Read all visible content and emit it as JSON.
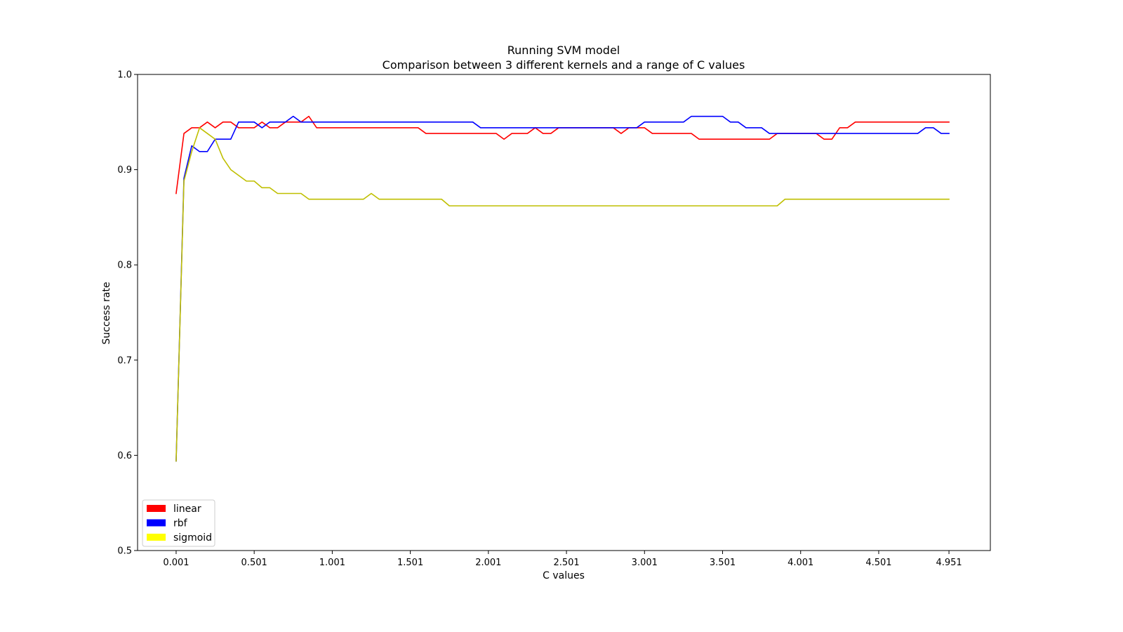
{
  "chart_data": {
    "type": "line",
    "title": [
      "Running SVM model",
      "Comparison between 3 different kernels and a range of C values"
    ],
    "xlabel": "C values",
    "ylabel": "Success rate",
    "xlim": [
      -0.246,
      5.216
    ],
    "ylim": [
      0.5,
      1.0
    ],
    "xticks": [
      0.001,
      0.501,
      1.001,
      1.501,
      2.001,
      2.501,
      3.001,
      3.501,
      4.001,
      4.501,
      4.951
    ],
    "xtick_labels": [
      "0.001",
      "0.501",
      "1.001",
      "1.501",
      "2.001",
      "2.501",
      "3.001",
      "3.501",
      "4.001",
      "4.501",
      "4.951"
    ],
    "yticks": [
      0.5,
      0.6,
      0.7,
      0.8,
      0.9,
      1.0
    ],
    "ytick_labels": [
      "0.5",
      "0.6",
      "0.7",
      "0.8",
      "0.9",
      "1.0"
    ],
    "grid": false,
    "legend": {
      "placement": "lower-left",
      "entries": [
        {
          "label": "linear",
          "color": "#ff0000"
        },
        {
          "label": "rbf",
          "color": "#0000ff"
        },
        {
          "label": "sigmoid",
          "color": "#ffff00"
        }
      ]
    },
    "series": [
      {
        "name": "linear",
        "color": "#ff0000",
        "points": [
          [
            0.001,
            0.875
          ],
          [
            0.051,
            0.938
          ],
          [
            0.101,
            0.944
          ],
          [
            0.151,
            0.944
          ],
          [
            0.201,
            0.95
          ],
          [
            0.251,
            0.944
          ],
          [
            0.301,
            0.95
          ],
          [
            0.351,
            0.95
          ],
          [
            0.401,
            0.944
          ],
          [
            0.451,
            0.944
          ],
          [
            0.501,
            0.944
          ],
          [
            0.551,
            0.95
          ],
          [
            0.601,
            0.944
          ],
          [
            0.651,
            0.944
          ],
          [
            0.701,
            0.95
          ],
          [
            0.751,
            0.95
          ],
          [
            0.801,
            0.95
          ],
          [
            0.851,
            0.956
          ],
          [
            0.901,
            0.944
          ],
          [
            1.001,
            0.944
          ],
          [
            1.201,
            0.944
          ],
          [
            1.401,
            0.944
          ],
          [
            1.551,
            0.944
          ],
          [
            1.601,
            0.938
          ],
          [
            1.801,
            0.938
          ],
          [
            2.051,
            0.938
          ],
          [
            2.101,
            0.932
          ],
          [
            2.151,
            0.938
          ],
          [
            2.251,
            0.938
          ],
          [
            2.301,
            0.944
          ],
          [
            2.351,
            0.938
          ],
          [
            2.401,
            0.938
          ],
          [
            2.451,
            0.944
          ],
          [
            2.551,
            0.944
          ],
          [
            2.801,
            0.944
          ],
          [
            2.851,
            0.938
          ],
          [
            2.901,
            0.944
          ],
          [
            3.001,
            0.944
          ],
          [
            3.051,
            0.938
          ],
          [
            3.301,
            0.938
          ],
          [
            3.351,
            0.932
          ],
          [
            3.501,
            0.932
          ],
          [
            3.601,
            0.932
          ],
          [
            3.801,
            0.932
          ],
          [
            3.851,
            0.938
          ],
          [
            4.101,
            0.938
          ],
          [
            4.151,
            0.932
          ],
          [
            4.201,
            0.932
          ],
          [
            4.251,
            0.944
          ],
          [
            4.301,
            0.944
          ],
          [
            4.351,
            0.95
          ],
          [
            4.501,
            0.95
          ],
          [
            4.951,
            0.95
          ]
        ]
      },
      {
        "name": "rbf",
        "color": "#0000ff",
        "points": [
          [
            0.001,
            0.594
          ],
          [
            0.051,
            0.891
          ],
          [
            0.101,
            0.925
          ],
          [
            0.151,
            0.919
          ],
          [
            0.201,
            0.919
          ],
          [
            0.251,
            0.932
          ],
          [
            0.301,
            0.932
          ],
          [
            0.351,
            0.932
          ],
          [
            0.401,
            0.95
          ],
          [
            0.451,
            0.95
          ],
          [
            0.501,
            0.95
          ],
          [
            0.551,
            0.944
          ],
          [
            0.601,
            0.95
          ],
          [
            0.651,
            0.95
          ],
          [
            0.701,
            0.95
          ],
          [
            0.751,
            0.956
          ],
          [
            0.801,
            0.95
          ],
          [
            0.851,
            0.95
          ],
          [
            1.001,
            0.95
          ],
          [
            1.501,
            0.95
          ],
          [
            1.901,
            0.95
          ],
          [
            1.951,
            0.944
          ],
          [
            2.001,
            0.944
          ],
          [
            2.501,
            0.944
          ],
          [
            2.951,
            0.944
          ],
          [
            3.001,
            0.95
          ],
          [
            3.251,
            0.95
          ],
          [
            3.301,
            0.956
          ],
          [
            3.501,
            0.956
          ],
          [
            3.551,
            0.95
          ],
          [
            3.601,
            0.95
          ],
          [
            3.651,
            0.944
          ],
          [
            3.751,
            0.944
          ],
          [
            3.801,
            0.938
          ],
          [
            4.001,
            0.938
          ],
          [
            4.501,
            0.938
          ],
          [
            4.751,
            0.938
          ],
          [
            4.801,
            0.944
          ],
          [
            4.851,
            0.944
          ],
          [
            4.901,
            0.938
          ],
          [
            4.951,
            0.938
          ]
        ]
      },
      {
        "name": "sigmoid",
        "color": "#bfbf00",
        "points": [
          [
            0.001,
            0.594
          ],
          [
            0.051,
            0.888
          ],
          [
            0.101,
            0.919
          ],
          [
            0.151,
            0.944
          ],
          [
            0.201,
            0.938
          ],
          [
            0.251,
            0.932
          ],
          [
            0.301,
            0.912
          ],
          [
            0.351,
            0.9
          ],
          [
            0.401,
            0.894
          ],
          [
            0.451,
            0.888
          ],
          [
            0.501,
            0.888
          ],
          [
            0.551,
            0.881
          ],
          [
            0.601,
            0.881
          ],
          [
            0.651,
            0.875
          ],
          [
            0.701,
            0.875
          ],
          [
            0.751,
            0.875
          ],
          [
            0.801,
            0.875
          ],
          [
            0.851,
            0.869
          ],
          [
            1.001,
            0.869
          ],
          [
            1.201,
            0.869
          ],
          [
            1.251,
            0.875
          ],
          [
            1.301,
            0.869
          ],
          [
            1.501,
            0.869
          ],
          [
            1.701,
            0.869
          ],
          [
            1.751,
            0.862
          ],
          [
            2.001,
            0.862
          ],
          [
            3.001,
            0.862
          ],
          [
            3.851,
            0.862
          ],
          [
            3.901,
            0.869
          ],
          [
            4.501,
            0.869
          ],
          [
            4.951,
            0.869
          ]
        ]
      }
    ]
  }
}
